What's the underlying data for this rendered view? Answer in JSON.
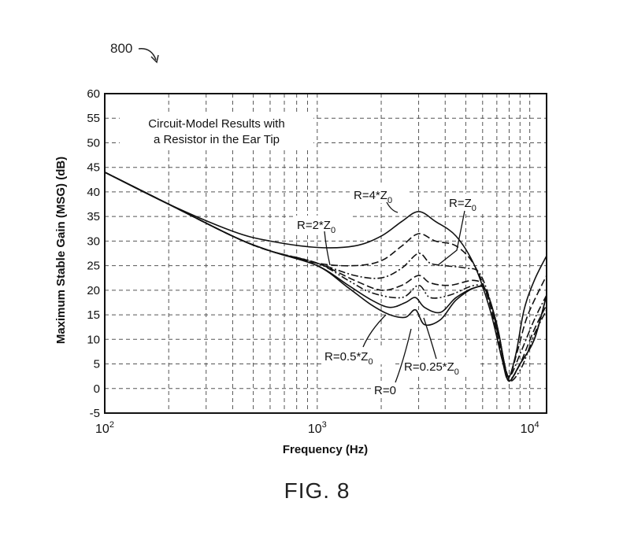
{
  "figure": {
    "reference_number": "800",
    "caption": "FIG. 8"
  },
  "chart_data": {
    "type": "line",
    "title": [
      "Circuit-Model Results with",
      "a Resistor in the Ear Tip"
    ],
    "xlabel": "Frequency (Hz)",
    "ylabel": "Maximum Stable Gain (MSG) (dB)",
    "xscale": "log",
    "xlim": [
      100,
      12000
    ],
    "ylim": [
      -5,
      60
    ],
    "grid": true,
    "legend": "none",
    "x_major_ticks": [
      {
        "value": 100,
        "base": "10",
        "exp": "2"
      },
      {
        "value": 1000,
        "base": "10",
        "exp": "3"
      },
      {
        "value": 10000,
        "base": "10",
        "exp": "4"
      }
    ],
    "y_ticks": [
      -5,
      0,
      5,
      10,
      15,
      20,
      25,
      30,
      35,
      40,
      45,
      50,
      55,
      60
    ],
    "series": [
      {
        "label": "R=4*Z0",
        "style": "solid",
        "points": [
          [
            100,
            44
          ],
          [
            200,
            37.5
          ],
          [
            400,
            32
          ],
          [
            600,
            30
          ],
          [
            1000,
            28.7
          ],
          [
            1500,
            29
          ],
          [
            2000,
            31
          ],
          [
            2500,
            34
          ],
          [
            3000,
            36
          ],
          [
            3600,
            34
          ],
          [
            4500,
            31
          ],
          [
            5500,
            25
          ],
          [
            6500,
            16
          ],
          [
            7400,
            6
          ],
          [
            7900,
            2
          ],
          [
            8600,
            7
          ],
          [
            9400,
            16
          ],
          [
            10500,
            22
          ],
          [
            12000,
            27
          ]
        ]
      },
      {
        "label": "R=2*Z0",
        "style": "dash",
        "points": [
          [
            100,
            44
          ],
          [
            200,
            37.5
          ],
          [
            400,
            31
          ],
          [
            600,
            28
          ],
          [
            1000,
            25.5
          ],
          [
            1500,
            25
          ],
          [
            2000,
            26
          ],
          [
            2500,
            29
          ],
          [
            3000,
            31.5
          ],
          [
            3600,
            30
          ],
          [
            4500,
            29
          ],
          [
            5500,
            25
          ],
          [
            6500,
            17
          ],
          [
            7400,
            6
          ],
          [
            8000,
            2.5
          ],
          [
            8800,
            8
          ],
          [
            9800,
            15
          ],
          [
            12000,
            23
          ]
        ]
      },
      {
        "label": "R=Z0",
        "style": "dashdot",
        "points": [
          [
            100,
            44
          ],
          [
            200,
            37.5
          ],
          [
            400,
            31
          ],
          [
            600,
            28
          ],
          [
            1000,
            25.5
          ],
          [
            1500,
            23
          ],
          [
            2000,
            22.5
          ],
          [
            2500,
            24.5
          ],
          [
            3000,
            27.5
          ],
          [
            3400,
            25.5
          ],
          [
            4000,
            25
          ],
          [
            5000,
            24.5
          ],
          [
            5800,
            23.5
          ],
          [
            6600,
            17
          ],
          [
            7400,
            7
          ],
          [
            8000,
            2.5
          ],
          [
            9000,
            7
          ],
          [
            10500,
            14
          ],
          [
            12000,
            19
          ]
        ]
      },
      {
        "label": "R=0.5*Z0",
        "style": "dash",
        "points": [
          [
            100,
            44
          ],
          [
            200,
            37.5
          ],
          [
            400,
            31
          ],
          [
            600,
            28
          ],
          [
            1000,
            25.5
          ],
          [
            1500,
            22
          ],
          [
            2000,
            20
          ],
          [
            2500,
            21
          ],
          [
            3000,
            23
          ],
          [
            3400,
            21.5
          ],
          [
            4200,
            21
          ],
          [
            5500,
            22
          ],
          [
            6200,
            20
          ],
          [
            7000,
            12
          ],
          [
            7600,
            5
          ],
          [
            8100,
            2
          ],
          [
            9000,
            5
          ],
          [
            10500,
            12
          ],
          [
            12000,
            17
          ]
        ]
      },
      {
        "label": "R=0.25*Z0",
        "style": "dashdotdot",
        "points": [
          [
            100,
            44
          ],
          [
            200,
            37.5
          ],
          [
            400,
            31
          ],
          [
            600,
            28
          ],
          [
            1000,
            25.5
          ],
          [
            1400,
            22
          ],
          [
            1800,
            19.5
          ],
          [
            2500,
            18.5
          ],
          [
            3000,
            21
          ],
          [
            3400,
            18.5
          ],
          [
            4200,
            19
          ],
          [
            5500,
            21
          ],
          [
            6200,
            20
          ],
          [
            7000,
            13
          ],
          [
            7600,
            5
          ],
          [
            8100,
            1.5
          ],
          [
            9200,
            4.5
          ],
          [
            10500,
            11
          ],
          [
            12000,
            16
          ]
        ]
      },
      {
        "label": "R=0",
        "style": "solid",
        "points": [
          [
            100,
            44
          ],
          [
            200,
            37.5
          ],
          [
            400,
            31
          ],
          [
            600,
            28
          ],
          [
            1000,
            25
          ],
          [
            1400,
            21
          ],
          [
            1800,
            18
          ],
          [
            2200,
            16.5
          ],
          [
            2600,
            17.5
          ],
          [
            2900,
            18.5
          ],
          [
            3200,
            16.5
          ],
          [
            3800,
            15.5
          ],
          [
            4500,
            18.5
          ],
          [
            5500,
            20.5
          ],
          [
            6200,
            20
          ],
          [
            7000,
            13
          ],
          [
            7600,
            5
          ],
          [
            8000,
            1.5
          ],
          [
            9000,
            5
          ],
          [
            10500,
            10
          ],
          [
            12000,
            19
          ]
        ]
      },
      {
        "label": "",
        "style": "solid",
        "points": [
          [
            100,
            44
          ],
          [
            200,
            37.5
          ],
          [
            400,
            31
          ],
          [
            600,
            28
          ],
          [
            1000,
            25
          ],
          [
            1400,
            20.5
          ],
          [
            1800,
            17
          ],
          [
            2200,
            15
          ],
          [
            2600,
            14.5
          ],
          [
            2900,
            16
          ],
          [
            3200,
            13
          ],
          [
            3800,
            14
          ],
          [
            4500,
            18
          ],
          [
            5500,
            20.5
          ],
          [
            6200,
            20
          ],
          [
            7000,
            13
          ],
          [
            7600,
            5
          ],
          [
            8000,
            1.5
          ],
          [
            9000,
            5
          ],
          [
            10500,
            10
          ],
          [
            12000,
            19
          ]
        ]
      }
    ],
    "annotations": [
      {
        "base": "R=4*Z",
        "sub": "0"
      },
      {
        "base": "R=Z",
        "sub": "0"
      },
      {
        "base": "R=2*Z",
        "sub": "0"
      },
      {
        "base": "R=0.5*Z",
        "sub": "0"
      },
      {
        "base": "R=0.25*Z",
        "sub": "0"
      },
      {
        "base": "R=0",
        "sub": ""
      }
    ]
  }
}
